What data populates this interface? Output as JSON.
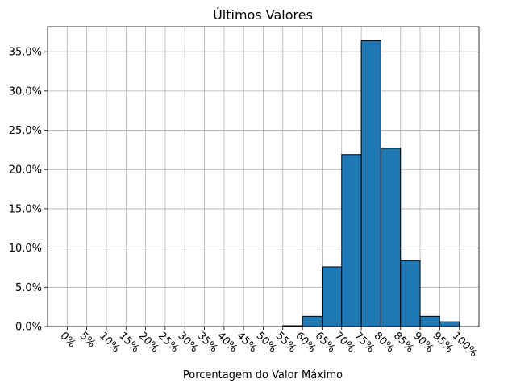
{
  "chart_data": {
    "type": "bar",
    "title": "Últimos Valores",
    "xlabel": "Porcentagem do Valor Máximo",
    "ylabel": "",
    "x_ticks": [
      "0%",
      "5%",
      "10%",
      "15%",
      "20%",
      "25%",
      "30%",
      "35%",
      "40%",
      "45%",
      "50%",
      "55%",
      "60%",
      "65%",
      "70%",
      "75%",
      "80%",
      "85%",
      "90%",
      "95%",
      "100%"
    ],
    "y_ticks": [
      "0.0%",
      "5.0%",
      "10.0%",
      "15.0%",
      "20.0%",
      "25.0%",
      "30.0%",
      "35.0%"
    ],
    "xlim": [
      -5,
      105
    ],
    "ylim": [
      0,
      38.2
    ],
    "bin_width": 5,
    "bins": [
      {
        "start": 55,
        "value": 0.1
      },
      {
        "start": 60,
        "value": 1.3
      },
      {
        "start": 65,
        "value": 7.6
      },
      {
        "start": 70,
        "value": 21.9
      },
      {
        "start": 75,
        "value": 36.4
      },
      {
        "start": 80,
        "value": 22.7
      },
      {
        "start": 85,
        "value": 8.4
      },
      {
        "start": 90,
        "value": 1.3
      },
      {
        "start": 95,
        "value": 0.6
      }
    ],
    "grid": true,
    "colors": {
      "bar": "#1f77b4",
      "grid": "#b0b0b0"
    }
  }
}
